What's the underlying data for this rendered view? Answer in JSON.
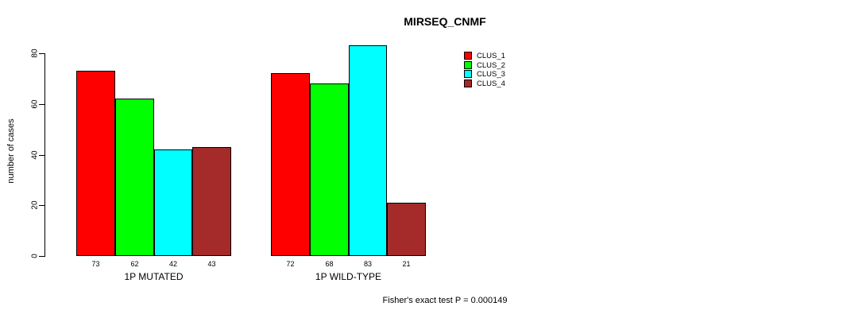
{
  "chart_data": {
    "type": "bar",
    "title": "MIRSEQ_CNMF",
    "ylabel": "number of cases",
    "xlabel": "",
    "categories": [
      "1P MUTATED",
      "1P WILD-TYPE"
    ],
    "series": [
      {
        "name": "CLUS_1",
        "color": "#ff0000",
        "values": [
          73,
          72
        ]
      },
      {
        "name": "CLUS_2",
        "color": "#00ff00",
        "values": [
          62,
          68
        ]
      },
      {
        "name": "CLUS_3",
        "color": "#00ffff",
        "values": [
          42,
          83
        ]
      },
      {
        "name": "CLUS_4",
        "color": "#a52a2a",
        "values": [
          43,
          21
        ]
      }
    ],
    "yticks": [
      0,
      20,
      40,
      60,
      80
    ],
    "ylim": [
      0,
      80
    ],
    "grid": false,
    "legend_position": "top-right",
    "bar_border_color": "#000000",
    "annotation": "Fisher's exact test P = 0.000149"
  }
}
